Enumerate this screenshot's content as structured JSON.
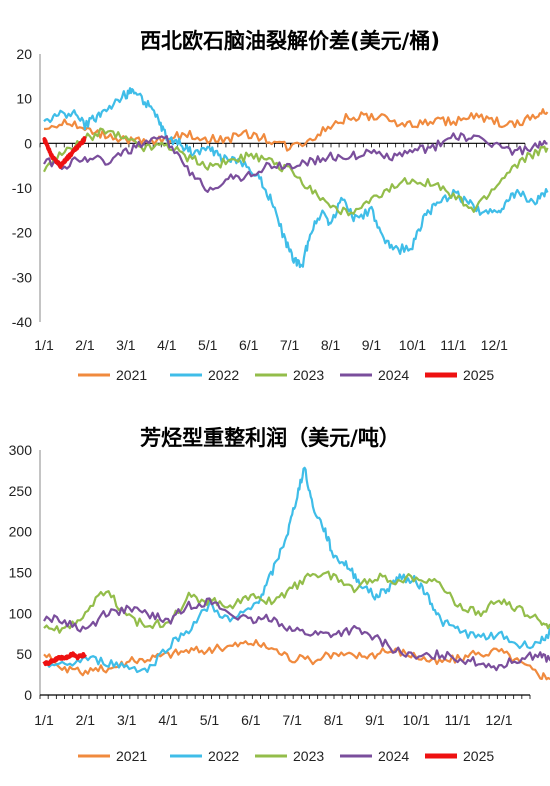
{
  "chart_data": [
    {
      "type": "line",
      "title": "西北欧石脑油裂解价差(美元/桶)",
      "x_ticks": [
        "1/1",
        "2/1",
        "3/1",
        "4/1",
        "5/1",
        "6/1",
        "7/1",
        "8/1",
        "9/1",
        "10/1",
        "11/1",
        "12/1"
      ],
      "ylim": [
        -40,
        20
      ],
      "y_ticks": [
        20,
        10,
        0,
        -10,
        -20,
        -30,
        -40
      ],
      "grid": false,
      "legend_position": "bottom",
      "series": [
        {
          "name": "2021",
          "color": "#f08a3e",
          "x": [
            0,
            0.5,
            1,
            1.5,
            2,
            2.5,
            3,
            3.5,
            4,
            4.5,
            5,
            5.5,
            6,
            6.5,
            7,
            7.5,
            8,
            8.5,
            9,
            9.5,
            10,
            10.5,
            11,
            11.5,
            12,
            12.3
          ],
          "y": [
            3,
            5,
            3,
            2,
            1,
            0,
            1,
            2,
            1,
            1,
            2,
            1,
            -1,
            1,
            4,
            6,
            6,
            5,
            4,
            5,
            5,
            6,
            5,
            4,
            6,
            7
          ]
        },
        {
          "name": "2022",
          "color": "#3fbde8",
          "x": [
            0,
            0.3,
            0.7,
            1,
            1.3,
            1.6,
            2,
            2.2,
            2.5,
            2.8,
            3,
            3.3,
            3.6,
            4,
            4.3,
            4.6,
            5,
            5.3,
            5.6,
            5.9,
            6.1,
            6.3,
            6.5,
            6.8,
            7,
            7.3,
            7.6,
            8,
            8.3,
            8.6,
            9,
            9.3,
            9.6,
            10,
            10.3,
            10.6,
            11,
            11.3,
            11.6,
            12,
            12.3
          ],
          "y": [
            5,
            6,
            7,
            4,
            6,
            8,
            11,
            12,
            9,
            5,
            1,
            0,
            -2,
            -1,
            -3,
            -4,
            -5,
            -8,
            -14,
            -22,
            -26,
            -28,
            -20,
            -15,
            -18,
            -12,
            -17,
            -15,
            -22,
            -24,
            -23,
            -16,
            -14,
            -11,
            -13,
            -15,
            -16,
            -13,
            -11,
            -13,
            -11
          ]
        },
        {
          "name": "2023",
          "color": "#93bd4a",
          "x": [
            0,
            0.5,
            1,
            1.5,
            2,
            2.5,
            3,
            3.5,
            4,
            4.5,
            5,
            5.5,
            6,
            6.5,
            7,
            7.5,
            8,
            8.5,
            9,
            9.5,
            10,
            10.5,
            11,
            11.5,
            12,
            12.3
          ],
          "y": [
            -6,
            -2,
            1,
            3,
            1,
            -1,
            0,
            -3,
            -5,
            -4,
            -3,
            -4,
            -6,
            -10,
            -14,
            -16,
            -13,
            -10,
            -8,
            -9,
            -12,
            -15,
            -10,
            -5,
            -2,
            -1
          ]
        },
        {
          "name": "2024",
          "color": "#7a4e9c",
          "x": [
            0,
            0.5,
            1,
            1.5,
            2,
            2.5,
            3,
            3.5,
            4,
            4.5,
            5,
            5.5,
            6,
            6.5,
            7,
            7.5,
            8,
            8.5,
            9,
            9.5,
            10,
            10.5,
            11,
            11.5,
            12,
            12.3
          ],
          "y": [
            -4,
            -5,
            -3,
            -4,
            -2,
            0,
            1,
            -6,
            -10,
            -8,
            -7,
            -5,
            -5,
            -4,
            -3,
            -3,
            -2,
            -3,
            -2,
            -1,
            2,
            1,
            0,
            -2,
            -1,
            0
          ]
        },
        {
          "name": "2025",
          "color": "#ee1111",
          "x": [
            0,
            0.1,
            0.2,
            0.3,
            0.4,
            0.5,
            0.6,
            0.7,
            0.8,
            0.9,
            1
          ],
          "y": [
            1,
            -1,
            -3,
            -4,
            -5,
            -4,
            -3,
            -2,
            -1,
            0,
            1
          ]
        }
      ]
    },
    {
      "type": "line",
      "title": "芳烃型重整利润（美元/吨）",
      "x_ticks": [
        "1/1",
        "2/1",
        "3/1",
        "4/1",
        "5/1",
        "6/1",
        "7/1",
        "8/1",
        "9/1",
        "10/1",
        "11/1",
        "12/1"
      ],
      "ylim": [
        0,
        300
      ],
      "y_ticks": [
        300,
        250,
        200,
        150,
        100,
        50,
        0
      ],
      "grid": false,
      "legend_position": "bottom",
      "series": [
        {
          "name": "2021",
          "color": "#f08a3e",
          "x": [
            0,
            0.5,
            1,
            1.5,
            2,
            2.5,
            3,
            3.5,
            4,
            4.5,
            5,
            5.5,
            6,
            6.5,
            7,
            7.5,
            8,
            8.5,
            9,
            9.5,
            10,
            10.5,
            11,
            11.5,
            12,
            12.3
          ],
          "y": [
            50,
            30,
            28,
            32,
            40,
            45,
            50,
            55,
            55,
            60,
            65,
            58,
            45,
            42,
            50,
            48,
            50,
            55,
            48,
            40,
            45,
            50,
            55,
            40,
            25,
            22
          ]
        },
        {
          "name": "2022",
          "color": "#3fbde8",
          "x": [
            0,
            0.5,
            1,
            1.5,
            2,
            2.5,
            3,
            3.5,
            4,
            4.5,
            5,
            5.3,
            5.6,
            5.9,
            6.1,
            6.3,
            6.5,
            6.8,
            7,
            7.3,
            7.6,
            8,
            8.3,
            8.6,
            9,
            9.3,
            9.6,
            10,
            10.5,
            11,
            11.5,
            12,
            12.3
          ],
          "y": [
            40,
            35,
            45,
            40,
            35,
            30,
            60,
            80,
            110,
            90,
            105,
            125,
            160,
            200,
            240,
            280,
            230,
            200,
            170,
            160,
            140,
            120,
            130,
            145,
            140,
            120,
            90,
            80,
            70,
            75,
            60,
            65,
            80
          ]
        },
        {
          "name": "2023",
          "color": "#93bd4a",
          "x": [
            0,
            0.5,
            1,
            1.5,
            2,
            2.5,
            3,
            3.5,
            4,
            4.5,
            5,
            5.5,
            6,
            6.5,
            7,
            7.5,
            8,
            8.5,
            9,
            9.5,
            10,
            10.5,
            11,
            11.5,
            12,
            12.3
          ],
          "y": [
            85,
            80,
            100,
            130,
            95,
            85,
            90,
            120,
            115,
            110,
            120,
            115,
            130,
            150,
            145,
            130,
            145,
            140,
            145,
            140,
            110,
            100,
            115,
            105,
            90,
            85
          ]
        },
        {
          "name": "2024",
          "color": "#7a4e9c",
          "x": [
            0,
            0.5,
            1,
            1.5,
            2,
            2.5,
            3,
            3.5,
            4,
            4.5,
            5,
            5.5,
            6,
            6.5,
            7,
            7.5,
            8,
            8.5,
            9,
            9.5,
            10,
            10.5,
            11,
            11.5,
            12,
            12.3
          ],
          "y": [
            95,
            90,
            80,
            100,
            105,
            100,
            90,
            110,
            115,
            100,
            90,
            95,
            80,
            75,
            75,
            80,
            70,
            55,
            45,
            50,
            45,
            40,
            35,
            45,
            50,
            40
          ]
        },
        {
          "name": "2025",
          "color": "#ee1111",
          "x": [
            0,
            0.1,
            0.2,
            0.3,
            0.4,
            0.5,
            0.6,
            0.7,
            0.8,
            0.9,
            1
          ],
          "y": [
            40,
            38,
            42,
            44,
            46,
            45,
            48,
            50,
            46,
            48,
            50
          ]
        }
      ]
    }
  ]
}
